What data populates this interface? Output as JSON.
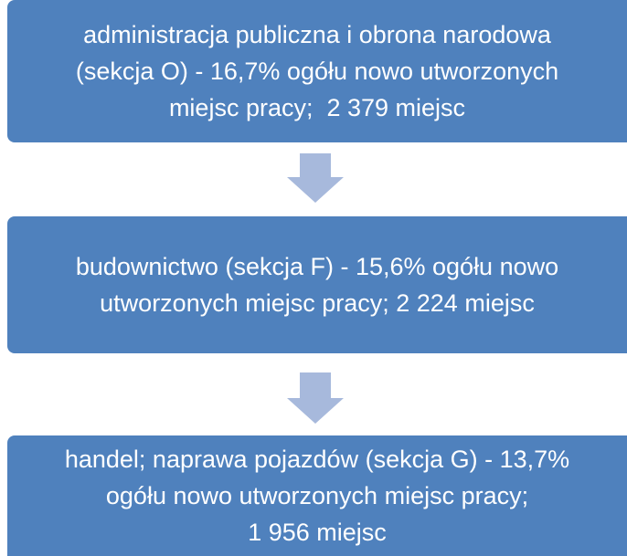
{
  "nodes": [
    {
      "lines": [
        "administracja publiczna i obrona narodowa",
        "(sekcja O) - 16,7% ogółu nowo utworzonych",
        "miejsc pracy;  2 379 miejsc"
      ]
    },
    {
      "lines": [
        "budownictwo (sekcja F) - 15,6% ogółu nowo",
        "utworzonych miejsc pracy; 2 224 miejsc"
      ]
    },
    {
      "lines": [
        "handel; naprawa pojazdów (sekcja G) - 13,7%",
        "ogółu nowo utworzonych miejsc pracy;",
        "1 956 miejsc"
      ]
    }
  ]
}
